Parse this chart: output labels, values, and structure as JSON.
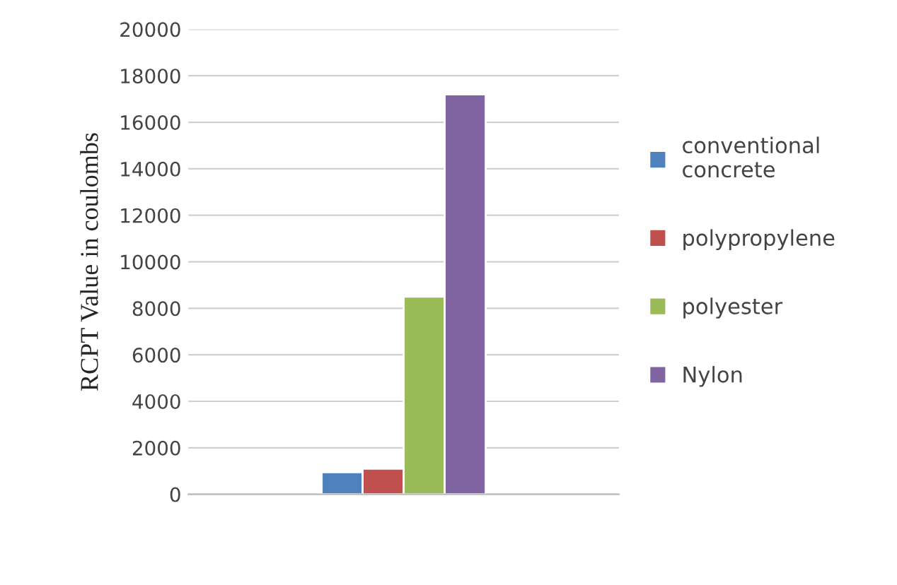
{
  "chart_data": {
    "type": "bar",
    "ylabel": "RCPT Value in coulombs",
    "categories": [
      null
    ],
    "series": [
      {
        "name": "conventional concrete",
        "color": "#4f81bd",
        "values": [
          950
        ]
      },
      {
        "name": "polypropylene",
        "color": "#c0504d",
        "values": [
          1100
        ]
      },
      {
        "name": "polyester",
        "color": "#9bbb59",
        "values": [
          8500
        ]
      },
      {
        "name": "Nylon",
        "color": "#8064a2",
        "values": [
          17200
        ]
      }
    ],
    "ylim": [
      0,
      20000
    ],
    "yticks": [
      0,
      2000,
      4000,
      6000,
      8000,
      10000,
      12000,
      14000,
      16000,
      18000,
      20000
    ],
    "grid": "y",
    "legend": "right"
  }
}
